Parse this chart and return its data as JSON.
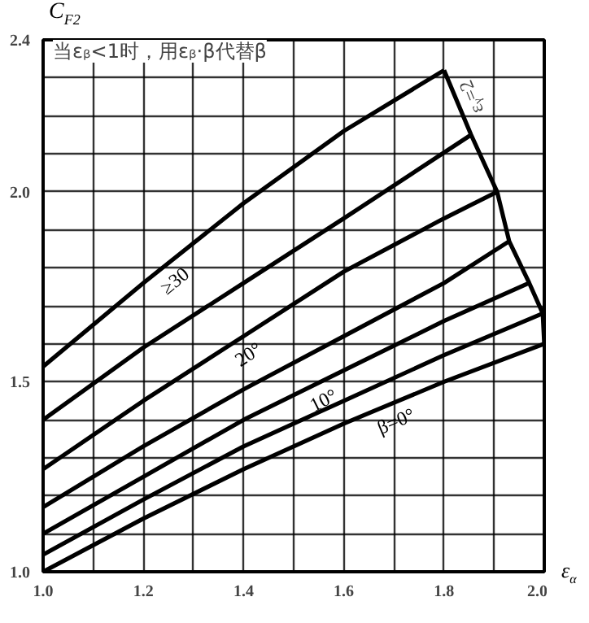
{
  "chart_data": {
    "type": "line",
    "title": "当εᵦ<1时，用εᵦ·β代替β",
    "xlabel": "ε$_{α}$",
    "ylabel": "C$_{F2}$",
    "xlim": [
      1.0,
      2.0
    ],
    "ylim": [
      1.0,
      2.4
    ],
    "grid": true,
    "xticks": [
      {
        "value": 1.0,
        "label": "1.0"
      },
      {
        "value": 1.1,
        "label": null
      },
      {
        "value": 1.2,
        "label": "1.2"
      },
      {
        "value": 1.3,
        "label": null
      },
      {
        "value": 1.4,
        "label": "1.4"
      },
      {
        "value": 1.5,
        "label": null
      },
      {
        "value": 1.6,
        "label": "1.6"
      },
      {
        "value": 1.7,
        "label": null
      },
      {
        "value": 1.8,
        "label": "1.8"
      },
      {
        "value": 1.9,
        "label": null
      },
      {
        "value": 2.0,
        "label": "2.0"
      }
    ],
    "yticks": [
      {
        "value": 1.0,
        "label": "1.0"
      },
      {
        "value": 1.1,
        "label": null
      },
      {
        "value": 1.2,
        "label": null
      },
      {
        "value": 1.3,
        "label": null
      },
      {
        "value": 1.4,
        "label": null
      },
      {
        "value": 1.5,
        "label": "1.5"
      },
      {
        "value": 1.6,
        "label": null
      },
      {
        "value": 1.7,
        "label": null
      },
      {
        "value": 1.8,
        "label": null
      },
      {
        "value": 1.9,
        "label": null
      },
      {
        "value": 2.0,
        "label": "2.0"
      },
      {
        "value": 2.1,
        "label": null
      },
      {
        "value": 2.2,
        "label": null
      },
      {
        "value": 2.3,
        "label": null
      },
      {
        "value": 2.4,
        "label": "2.4"
      }
    ],
    "series": [
      {
        "name": "≥30",
        "color": "#000000",
        "x": [
          1.0,
          1.2,
          1.4,
          1.6,
          1.8
        ],
        "values": [
          1.54,
          1.76,
          1.97,
          2.16,
          2.32
        ]
      },
      {
        "color": "#000000",
        "x": [
          1.0,
          1.2,
          1.4,
          1.6,
          1.854
        ],
        "values": [
          1.4,
          1.59,
          1.76,
          1.93,
          2.15
        ]
      },
      {
        "name": "20°",
        "color": "#000000",
        "x": [
          1.0,
          1.2,
          1.4,
          1.6,
          1.8,
          1.906
        ],
        "values": [
          1.27,
          1.45,
          1.62,
          1.79,
          1.93,
          2.0
        ]
      },
      {
        "color": "#000000",
        "x": [
          1.0,
          1.2,
          1.4,
          1.6,
          1.8,
          1.93
        ],
        "values": [
          1.17,
          1.33,
          1.48,
          1.62,
          1.76,
          1.87
        ]
      },
      {
        "name": "10°",
        "color": "#000000",
        "x": [
          1.0,
          1.2,
          1.4,
          1.6,
          1.8,
          1.97
        ],
        "values": [
          1.1,
          1.25,
          1.4,
          1.53,
          1.66,
          1.76
        ]
      },
      {
        "color": "#000000",
        "x": [
          1.0,
          1.2,
          1.4,
          1.6,
          1.8,
          1.997
        ],
        "values": [
          1.045,
          1.19,
          1.33,
          1.45,
          1.57,
          1.68
        ]
      },
      {
        "name": "β=0°",
        "color": "#000000",
        "x": [
          1.0,
          1.2,
          1.4,
          1.6,
          1.8,
          2.0
        ],
        "values": [
          1.0,
          1.14,
          1.27,
          1.39,
          1.5,
          1.6
        ]
      },
      {
        "color": "#000000",
        "x": [
          1.8,
          1.854,
          1.906,
          1.93,
          1.97,
          1.997,
          2.0
        ],
        "values": [
          2.32,
          2.15,
          2.0,
          1.87,
          1.76,
          1.68,
          1.6
        ]
      }
    ],
    "annotations": [
      "εᵧ=2"
    ]
  }
}
